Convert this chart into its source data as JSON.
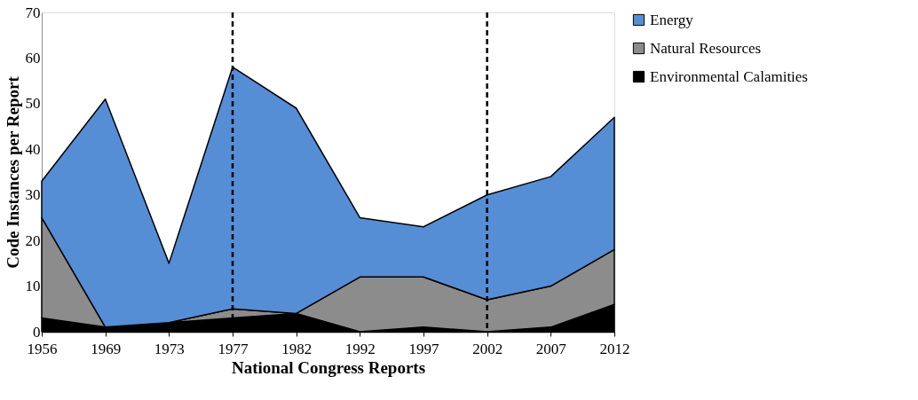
{
  "chart_data": {
    "type": "area",
    "stacked": true,
    "xlabel": "National Congress Reports",
    "ylabel": "Code Instances per Report",
    "categories": [
      "1956",
      "1969",
      "1973",
      "1977",
      "1982",
      "1992",
      "1997",
      "2002",
      "2007",
      "2012"
    ],
    "series": [
      {
        "name": "Environmental Calamities",
        "color": "#000000",
        "values": [
          3,
          1,
          2,
          3,
          4,
          0,
          1,
          0,
          1,
          6
        ]
      },
      {
        "name": "Natural Resources",
        "color": "#8c8c8c",
        "values": [
          22,
          0,
          0,
          2,
          0,
          12,
          11,
          7,
          9,
          12
        ]
      },
      {
        "name": "Energy",
        "color": "#558ed5",
        "values": [
          8,
          50,
          13,
          53,
          45,
          13,
          11,
          23,
          24,
          29
        ]
      }
    ],
    "ylim": [
      0,
      70
    ],
    "yticks": [
      0,
      10,
      20,
      30,
      40,
      50,
      60,
      70
    ],
    "grid": false,
    "legend": "right",
    "ref_lines": [
      {
        "axis": "x",
        "value": "1977",
        "line_style": "dashed",
        "color": "#000000"
      },
      {
        "axis": "x",
        "value": "2002",
        "line_style": "dashed",
        "color": "#000000"
      }
    ]
  }
}
